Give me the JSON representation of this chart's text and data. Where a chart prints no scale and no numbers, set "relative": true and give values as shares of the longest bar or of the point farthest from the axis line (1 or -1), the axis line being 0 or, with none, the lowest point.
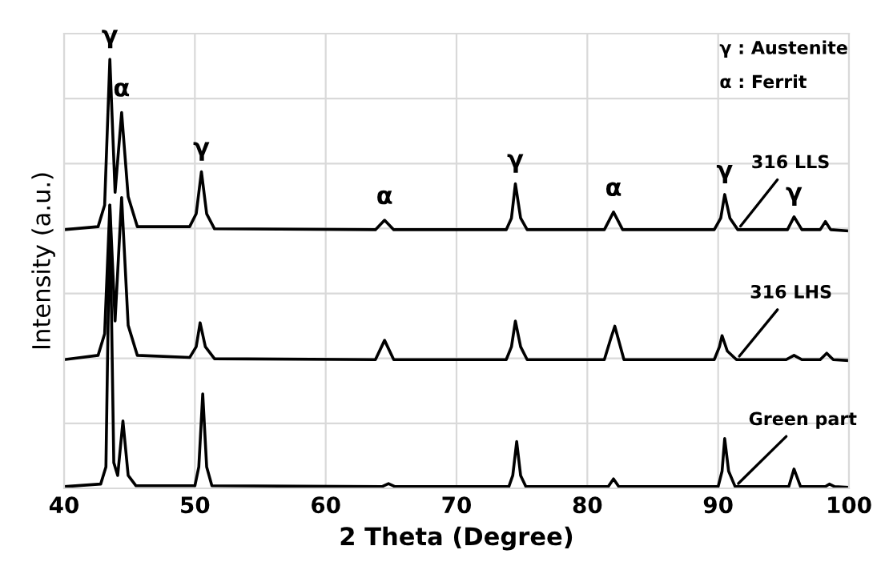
{
  "chart_data": {
    "type": "line",
    "relative": true,
    "xlabel": "2 Theta (Degree)",
    "ylabel": "Intensity (a.u.)",
    "xlim": [
      40,
      100
    ],
    "xticks": [
      40,
      50,
      60,
      70,
      80,
      90,
      100
    ],
    "grid": true,
    "tick_labels": "x",
    "legend": false,
    "marker": "none",
    "line_style": "solid",
    "series": [
      {
        "name": "316 LLS",
        "color": "#000000",
        "x": [
          40,
          42.6,
          43.1,
          43.5,
          43.9,
          44.4,
          44.9,
          45.6,
          49.6,
          50.1,
          50.5,
          50.9,
          51.5,
          63.8,
          64.5,
          65.2,
          73.8,
          74.2,
          74.5,
          74.9,
          75.4,
          81.3,
          82,
          82.7,
          89.7,
          90.2,
          90.5,
          90.9,
          91.5,
          95.3,
          95.8,
          96.4,
          97.8,
          98.2,
          98.6,
          100
        ],
        "values": [
          0.603,
          0.61,
          0.66,
          1.0,
          0.69,
          0.876,
          0.68,
          0.61,
          0.61,
          0.64,
          0.738,
          0.64,
          0.605,
          0.603,
          0.625,
          0.603,
          0.603,
          0.63,
          0.71,
          0.63,
          0.603,
          0.603,
          0.644,
          0.603,
          0.603,
          0.63,
          0.685,
          0.63,
          0.603,
          0.603,
          0.633,
          0.603,
          0.603,
          0.622,
          0.603,
          0.6
        ]
      },
      {
        "name": "316 LHS",
        "color": "#000000",
        "x": [
          40,
          42.6,
          43.1,
          43.5,
          43.9,
          44.4,
          44.9,
          45.6,
          49.6,
          50.1,
          50.4,
          50.8,
          51.5,
          63.8,
          64.5,
          65.2,
          73.8,
          74.2,
          74.5,
          74.9,
          75.4,
          81.3,
          81.8,
          82.1,
          82.8,
          89.7,
          90.1,
          90.3,
          90.7,
          91.4,
          95.2,
          95.8,
          96.4,
          97.8,
          98.3,
          98.8,
          100
        ],
        "values": [
          0.3,
          0.31,
          0.36,
          0.66,
          0.39,
          0.678,
          0.38,
          0.31,
          0.305,
          0.33,
          0.386,
          0.33,
          0.302,
          0.3,
          0.345,
          0.3,
          0.3,
          0.33,
          0.39,
          0.33,
          0.3,
          0.3,
          0.35,
          0.378,
          0.3,
          0.3,
          0.33,
          0.356,
          0.32,
          0.3,
          0.3,
          0.31,
          0.3,
          0.3,
          0.315,
          0.3,
          0.298
        ]
      },
      {
        "name": "Green part",
        "color": "#000000",
        "x": [
          40,
          42.8,
          43.2,
          43.5,
          43.8,
          44.1,
          44.5,
          44.9,
          45.5,
          50,
          50.3,
          50.6,
          50.9,
          51.3,
          64.3,
          64.8,
          65.3,
          74,
          74.3,
          74.6,
          74.9,
          75.3,
          81.6,
          82,
          82.4,
          90,
          90.3,
          90.5,
          90.8,
          91.3,
          95.4,
          95.8,
          96.3,
          98.2,
          98.5,
          98.9,
          100
        ],
        "values": [
          0.004,
          0.01,
          0.05,
          0.66,
          0.06,
          0.03,
          0.157,
          0.03,
          0.006,
          0.006,
          0.05,
          0.22,
          0.05,
          0.006,
          0.004,
          0.011,
          0.004,
          0.004,
          0.03,
          0.109,
          0.03,
          0.004,
          0.004,
          0.022,
          0.004,
          0.004,
          0.04,
          0.116,
          0.04,
          0.004,
          0.004,
          0.045,
          0.004,
          0.004,
          0.01,
          0.004,
          0.002
        ]
      }
    ],
    "annotations": [
      {
        "text": "γ",
        "x": 43.5,
        "y": 1.0
      },
      {
        "text": "α",
        "x": 44.4,
        "y": 0.876
      },
      {
        "text": "γ",
        "x": 50.5,
        "y": 0.738
      },
      {
        "text": "α",
        "x": 64.5,
        "y": 0.625
      },
      {
        "text": "γ",
        "x": 74.5,
        "y": 0.71
      },
      {
        "text": "α",
        "x": 82,
        "y": 0.644
      },
      {
        "text": "γ",
        "x": 90.5,
        "y": 0.685
      },
      {
        "text": "γ",
        "x": 95.8,
        "y": 0.633
      },
      "γ : Austenite",
      "α : Ferrit"
    ]
  }
}
